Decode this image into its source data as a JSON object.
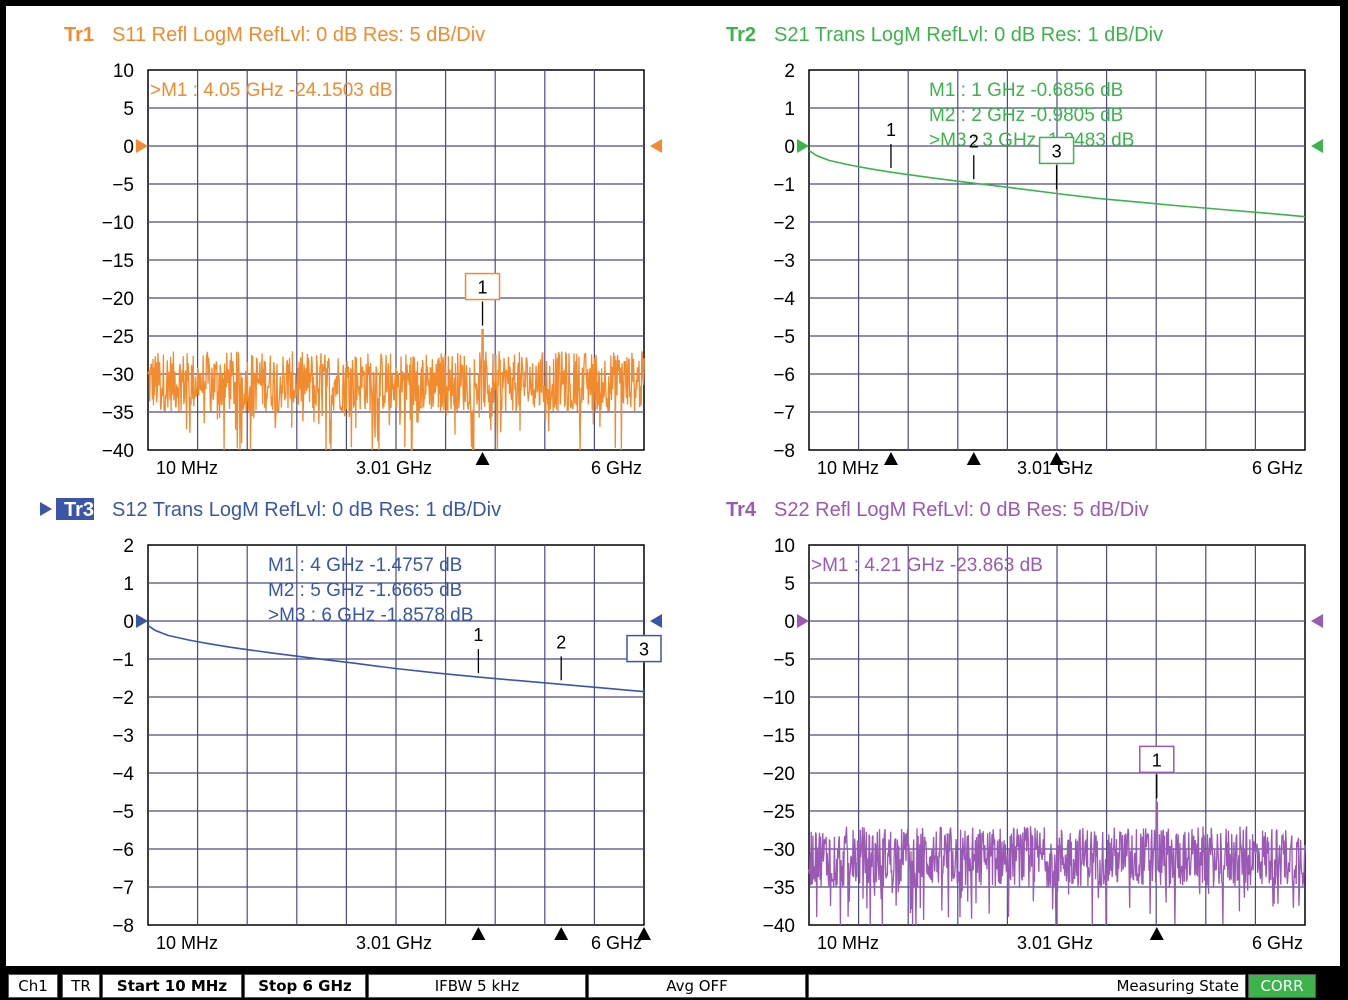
{
  "chart_data": [
    {
      "type": "line",
      "trace": "Tr1",
      "title": "S11 Refl LogM RefLvl: 0  dB Res: 5  dB/Div",
      "color": "#f28a2e",
      "active": false,
      "ylim": [
        -40,
        10
      ],
      "yticks": [
        10,
        5,
        0,
        -5,
        -10,
        -15,
        -20,
        -25,
        -30,
        -35,
        -40
      ],
      "ref_level": 0,
      "x_range_ghz": [
        0.01,
        6
      ],
      "xtick_labels": [
        "10 MHz",
        "3.01 GHz",
        "6 GHz"
      ],
      "noise": true,
      "noise_center_db": -31,
      "noise_spread_db": 4,
      "marker_readouts": [
        ">M1  :  4.05 GHz  -24.1503  dB"
      ],
      "markers": [
        {
          "label": "1",
          "x_ghz": 4.05,
          "y_db": -24.15,
          "boxed": true
        }
      ]
    },
    {
      "type": "line",
      "trace": "Tr2",
      "title": "S21 Trans LogM RefLvl: 0  dB Res: 1  dB/Div",
      "color": "#3cb44b",
      "active": false,
      "ylim": [
        -8,
        2
      ],
      "yticks": [
        2,
        1,
        0,
        -1,
        -2,
        -3,
        -4,
        -5,
        -6,
        -7,
        -8
      ],
      "ref_level": 0,
      "x_range_ghz": [
        0.01,
        6
      ],
      "xtick_labels": [
        "10 MHz",
        "3.01 GHz",
        "6 GHz"
      ],
      "x_ghz": [
        0.01,
        0.1,
        0.25,
        0.5,
        0.75,
        1,
        1.5,
        2,
        2.5,
        3,
        3.5,
        4,
        4.5,
        5,
        5.5,
        6
      ],
      "y_db": [
        -0.12,
        -0.25,
        -0.38,
        -0.5,
        -0.6,
        -0.69,
        -0.84,
        -0.98,
        -1.11,
        -1.25,
        -1.38,
        -1.48,
        -1.58,
        -1.67,
        -1.76,
        -1.86
      ],
      "marker_readouts": [
        "M1  :   1 GHz  -0.6856  dB",
        "M2  :   2 GHz  -0.9805  dB",
        ">M3  :  3 GHz  -1.2483  dB"
      ],
      "markers": [
        {
          "label": "1",
          "x_ghz": 1,
          "y_db": -0.6856,
          "boxed": false
        },
        {
          "label": "2",
          "x_ghz": 2,
          "y_db": -0.9805,
          "boxed": false
        },
        {
          "label": "3",
          "x_ghz": 3,
          "y_db": -1.2483,
          "boxed": true
        }
      ]
    },
    {
      "type": "line",
      "trace": "Tr3",
      "title": "S12 Trans LogM RefLvl: 0  dB Res: 1  dB/Div",
      "color": "#3b56a8",
      "active": true,
      "ylim": [
        -8,
        2
      ],
      "yticks": [
        2,
        1,
        0,
        -1,
        -2,
        -3,
        -4,
        -5,
        -6,
        -7,
        -8
      ],
      "ref_level": 0,
      "x_range_ghz": [
        0.01,
        6
      ],
      "xtick_labels": [
        "10 MHz",
        "3.01 GHz",
        "6 GHz"
      ],
      "x_ghz": [
        0.01,
        0.1,
        0.25,
        0.5,
        0.75,
        1,
        1.5,
        2,
        2.5,
        3,
        3.5,
        4,
        4.5,
        5,
        5.5,
        6
      ],
      "y_db": [
        -0.12,
        -0.25,
        -0.38,
        -0.5,
        -0.6,
        -0.69,
        -0.84,
        -0.98,
        -1.11,
        -1.25,
        -1.37,
        -1.4757,
        -1.57,
        -1.6665,
        -1.76,
        -1.8578
      ],
      "marker_readouts": [
        "M1  :   4 GHz  -1.4757  dB",
        "M2  :   5 GHz  -1.6665  dB",
        ">M3  :   6 GHz  -1.8578  dB"
      ],
      "markers": [
        {
          "label": "1",
          "x_ghz": 4,
          "y_db": -1.4757,
          "boxed": false
        },
        {
          "label": "2",
          "x_ghz": 5,
          "y_db": -1.6665,
          "boxed": false
        },
        {
          "label": "3",
          "x_ghz": 6,
          "y_db": -1.8578,
          "boxed": true
        }
      ]
    },
    {
      "type": "line",
      "trace": "Tr4",
      "title": "S22 Refl LogM RefLvl: 0  dB Res: 5  dB/Div",
      "color": "#9b59b6",
      "active": false,
      "ylim": [
        -40,
        10
      ],
      "yticks": [
        10,
        5,
        0,
        -5,
        -10,
        -15,
        -20,
        -25,
        -30,
        -35,
        -40
      ],
      "ref_level": 0,
      "x_range_ghz": [
        0.01,
        6
      ],
      "xtick_labels": [
        "10 MHz",
        "3.01 GHz",
        "6 GHz"
      ],
      "noise": true,
      "noise_center_db": -31,
      "noise_spread_db": 4,
      "marker_readouts": [
        ">M1  :  4.21 GHz  -23.863  dB"
      ],
      "markers": [
        {
          "label": "1",
          "x_ghz": 4.21,
          "y_db": -23.863,
          "boxed": true
        }
      ]
    }
  ],
  "statusbar": {
    "channel": "Ch1",
    "trigger": "TR",
    "start": "Start 10 MHz",
    "stop": "Stop 6 GHz",
    "ifbw": "IFBW 5 kHz",
    "avg": "Avg OFF",
    "state": "Measuring State",
    "corr": "CORR"
  }
}
